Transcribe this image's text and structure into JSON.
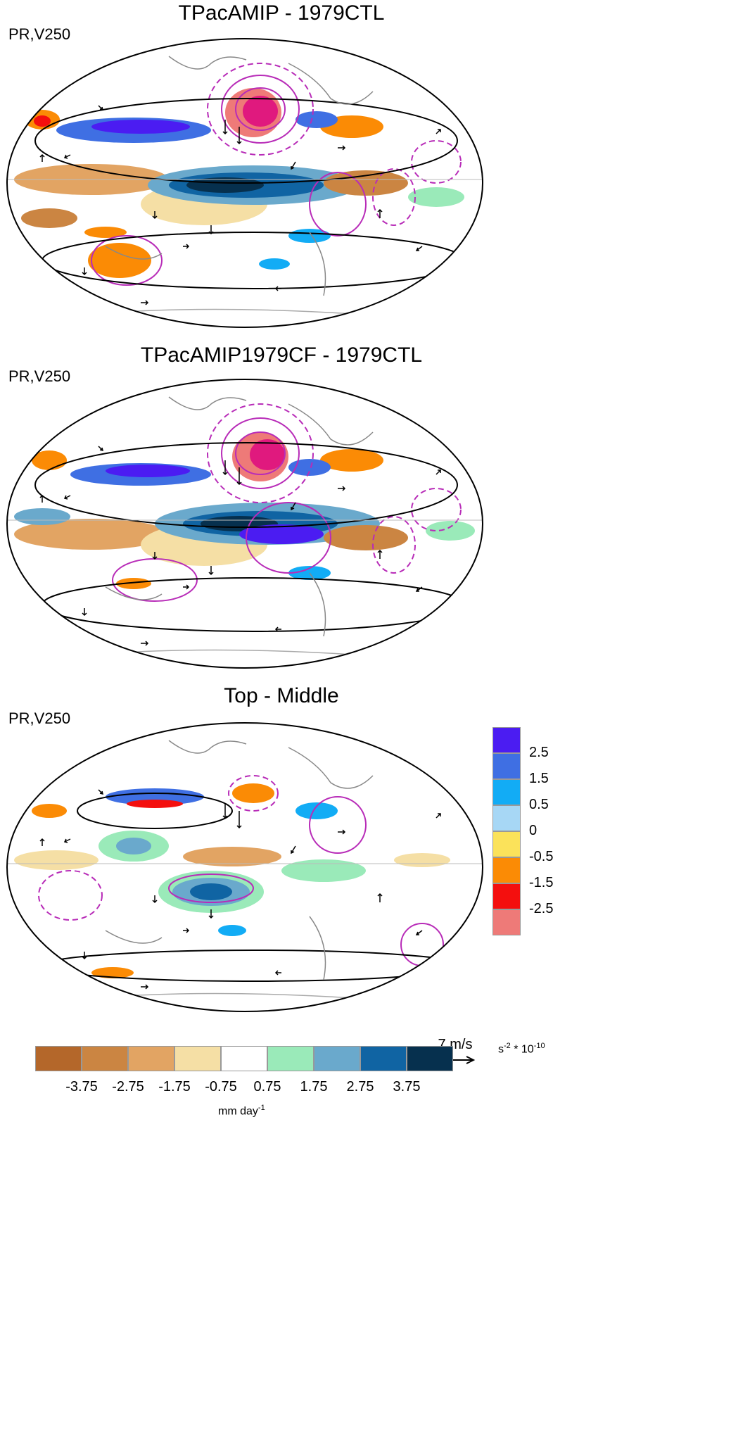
{
  "panels": [
    {
      "title": "TPacAMIP - 1979CTL",
      "subtitle": "PR,V250"
    },
    {
      "title": "TPacAMIP1979CF - 1979CTL",
      "subtitle": "PR,V250"
    },
    {
      "title": "Top - Middle",
      "subtitle": "PR,V250"
    }
  ],
  "colorbar_vertical": {
    "colors": [
      "#4b1cf2",
      "#3f6fe3",
      "#12acf5",
      "#a7d7f5",
      "#fbe25a",
      "#fb8b05",
      "#f40f0e",
      "#ee7a78"
    ],
    "labels": [
      "2.5",
      "1.5",
      "0.5",
      "0",
      "-0.5",
      "-1.5",
      "-2.5"
    ],
    "unit": "s-2 * 10-10",
    "unit_base": "s",
    "unit_exp1": "-2",
    "unit_mid": " * 10",
    "unit_exp2": "-10"
  },
  "colorbar_horizontal": {
    "colors": [
      "#b4672a",
      "#cb8542",
      "#e2a463",
      "#f5dfa5",
      "#ffffff",
      "#9aeab9",
      "#6aa9cc",
      "#1064a3",
      "#06304e"
    ],
    "labels": [
      "-3.75",
      "-2.75",
      "-1.75",
      "-0.75",
      "0.75",
      "1.75",
      "2.75",
      "3.75"
    ],
    "unit": "mm day-1",
    "unit_base": "mm day",
    "unit_exp": "-1"
  },
  "reference_vector": {
    "label": "7 m/s"
  }
}
